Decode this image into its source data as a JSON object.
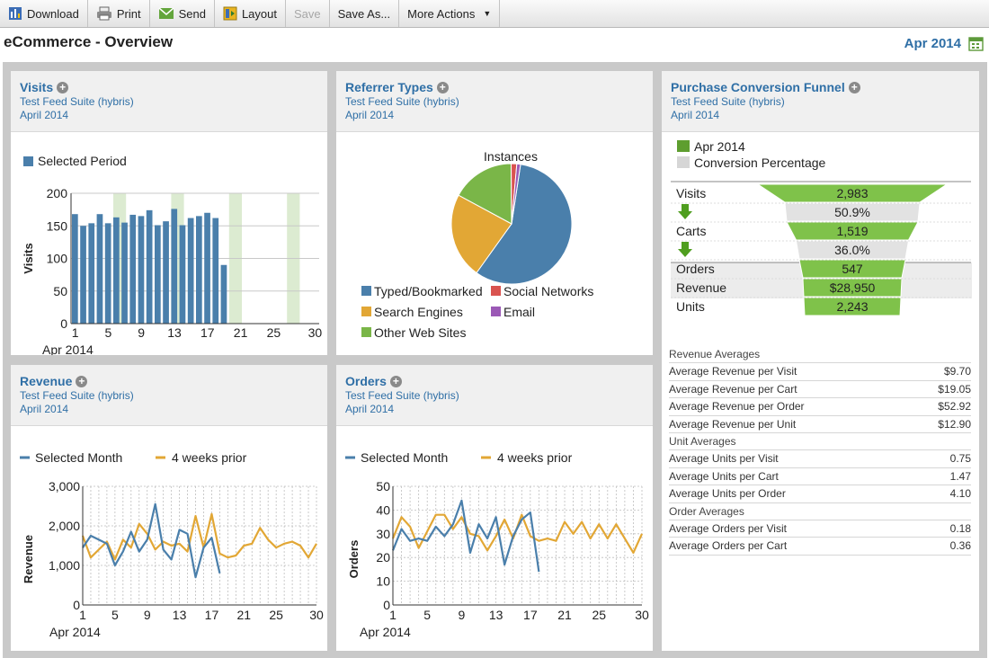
{
  "toolbar": {
    "download": "Download",
    "print": "Print",
    "send": "Send",
    "layout": "Layout",
    "save": "Save",
    "save_as": "Save As...",
    "more_actions": "More Actions"
  },
  "page": {
    "title": "eCommerce - Overview",
    "date": "Apr 2014"
  },
  "panels": {
    "visits": {
      "title": "Visits",
      "suite": "Test Feed Suite (hybris)",
      "period": "April  2014"
    },
    "referrers": {
      "title": "Referrer Types",
      "suite": "Test Feed Suite (hybris)",
      "period": "April  2014"
    },
    "funnel": {
      "title": "Purchase Conversion Funnel",
      "suite": "Test Feed Suite (hybris)",
      "period": "April  2014"
    },
    "revenue": {
      "title": "Revenue",
      "suite": "Test Feed Suite (hybris)",
      "period": "April  2014"
    },
    "orders": {
      "title": "Orders",
      "suite": "Test Feed Suite (hybris)",
      "period": "April  2014"
    }
  },
  "colors": {
    "blue": "#4a7fab",
    "gold": "#e2a735",
    "green": "#7ab648",
    "red": "#d9534f",
    "purple": "#9b59b6",
    "highlight": "#dcebd1"
  },
  "averages": {
    "rows": [
      {
        "label": "Revenue Averages",
        "value": "",
        "head": true
      },
      {
        "label": "Average Revenue per Visit",
        "value": "$9.70"
      },
      {
        "label": "Average Revenue per Cart",
        "value": "$19.05"
      },
      {
        "label": "Average Revenue per Order",
        "value": "$52.92"
      },
      {
        "label": "Average Revenue per Unit",
        "value": "$12.90"
      },
      {
        "label": "Unit Averages",
        "value": "",
        "head": true
      },
      {
        "label": "Average Units per Visit",
        "value": "0.75"
      },
      {
        "label": "Average Units per Cart",
        "value": "1.47"
      },
      {
        "label": "Average Units per Order",
        "value": "4.10"
      },
      {
        "label": "Order Averages",
        "value": "",
        "head": true
      },
      {
        "label": "Average Orders per Visit",
        "value": "0.18"
      },
      {
        "label": "Average Orders per Cart",
        "value": "0.36"
      }
    ]
  },
  "chart_data": [
    {
      "id": "visits",
      "type": "bar",
      "legend": [
        "Selected Period"
      ],
      "ylabel": "Visits",
      "xlabel": "Apr 2014",
      "ylim": [
        0,
        200
      ],
      "yticks": [
        0,
        50,
        100,
        150,
        200
      ],
      "xticks": [
        1,
        5,
        9,
        13,
        17,
        21,
        25,
        30
      ],
      "days": 30,
      "highlight_days": [
        6,
        13,
        20,
        27
      ],
      "series": [
        {
          "name": "Selected Period",
          "values": [
            168,
            150,
            154,
            168,
            154,
            163,
            155,
            167,
            165,
            174,
            151,
            157,
            176,
            151,
            162,
            165,
            170,
            162,
            90
          ]
        }
      ]
    },
    {
      "id": "referrers",
      "type": "pie",
      "title": "Instances",
      "slices": [
        {
          "label": "Typed/Bookmarked",
          "value": 57.5,
          "color": "#4a7fab"
        },
        {
          "label": "Search Engines",
          "value": 23,
          "color": "#e2a735"
        },
        {
          "label": "Other Web Sites",
          "value": 17,
          "color": "#7ab648"
        },
        {
          "label": "Social Networks",
          "value": 1.5,
          "color": "#d9534f"
        },
        {
          "label": "Email",
          "value": 1,
          "color": "#9b59b6"
        }
      ]
    },
    {
      "id": "funnel",
      "type": "table",
      "legend": [
        "Apr 2014",
        "Conversion Percentage"
      ],
      "stages": [
        {
          "label": "Visits",
          "value": "2,983"
        },
        {
          "label": "",
          "value": "50.9%",
          "pct": true
        },
        {
          "label": "Carts",
          "value": "1,519"
        },
        {
          "label": "",
          "value": "36.0%",
          "pct": true
        },
        {
          "label": "Orders",
          "value": "547"
        },
        {
          "label": "Revenue",
          "value": "$28,950"
        },
        {
          "label": "Units",
          "value": "2,243"
        }
      ]
    },
    {
      "id": "revenue",
      "type": "line",
      "legend": [
        "Selected Month",
        "4 weeks prior"
      ],
      "ylabel": "Revenue",
      "xlabel": "Apr 2014",
      "ylim": [
        0,
        3000
      ],
      "yticks": [
        0,
        1000,
        2000,
        3000
      ],
      "ytick_labels": [
        "0",
        "1,000",
        "2,000",
        "3,000"
      ],
      "xticks": [
        1,
        5,
        9,
        13,
        17,
        21,
        25,
        30
      ],
      "days": 30,
      "series": [
        {
          "name": "Selected Month",
          "color": "#4a7fab",
          "values": [
            1450,
            1750,
            1650,
            1550,
            1000,
            1350,
            1850,
            1350,
            1650,
            2550,
            1400,
            1150,
            1900,
            1800,
            700,
            1450,
            1700,
            800
          ]
        },
        {
          "name": "4 weeks prior",
          "color": "#e2a735",
          "values": [
            1750,
            1200,
            1400,
            1600,
            1150,
            1650,
            1450,
            2050,
            1800,
            1400,
            1600,
            1500,
            1550,
            1350,
            2250,
            1450,
            2300,
            1300,
            1200,
            1250,
            1500,
            1550,
            1950,
            1650,
            1450,
            1550,
            1600,
            1500,
            1200,
            1550
          ]
        }
      ]
    },
    {
      "id": "orders",
      "type": "line",
      "legend": [
        "Selected Month",
        "4 weeks prior"
      ],
      "ylabel": "Orders",
      "xlabel": "Apr 2014",
      "ylim": [
        0,
        50
      ],
      "yticks": [
        0,
        10,
        20,
        30,
        40,
        50
      ],
      "ytick_labels": [
        "0",
        "10",
        "20",
        "30",
        "40",
        "50"
      ],
      "xticks": [
        1,
        5,
        9,
        13,
        17,
        21,
        25,
        30
      ],
      "days": 30,
      "series": [
        {
          "name": "Selected Month",
          "color": "#4a7fab",
          "values": [
            23,
            32,
            27,
            28,
            27,
            33,
            29,
            34,
            44,
            22,
            34,
            28,
            37,
            17,
            29,
            36,
            39,
            14
          ]
        },
        {
          "name": "4 weeks prior",
          "color": "#e2a735",
          "values": [
            28,
            37,
            33,
            24,
            31,
            38,
            38,
            32,
            37,
            30,
            29,
            23,
            29,
            36,
            28,
            38,
            29,
            27,
            28,
            27,
            35,
            30,
            35,
            28,
            34,
            28,
            34,
            28,
            22,
            30
          ]
        }
      ]
    }
  ]
}
